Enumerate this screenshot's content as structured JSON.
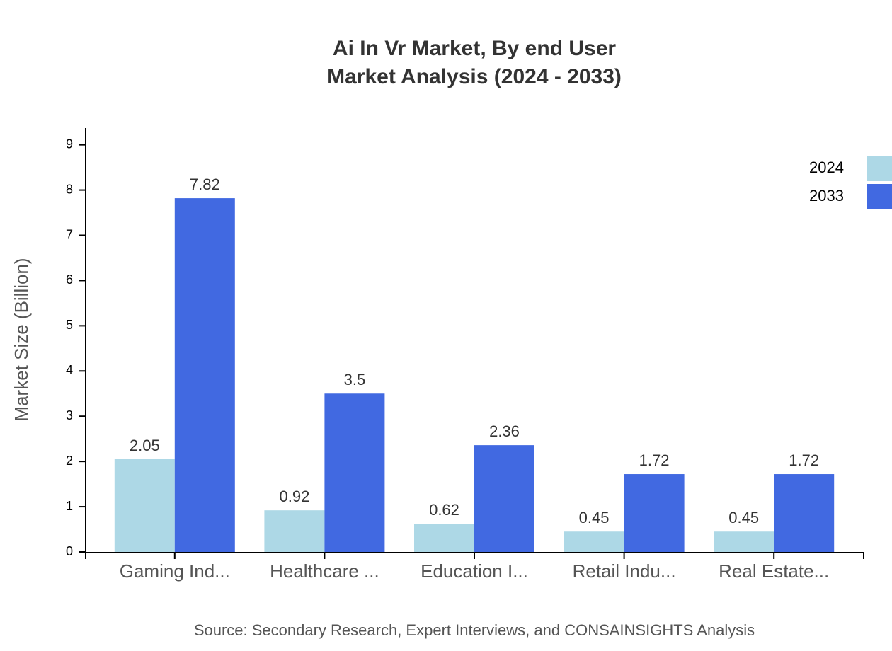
{
  "chart_data": {
    "type": "bar",
    "title": "Ai In Vr Market, By end User",
    "subtitle": "Market Analysis (2024 - 2033)",
    "y_label": "Market Size (Billion)",
    "source": "Source: Secondary Research, Expert Interviews, and CONSAINSIGHTS Analysis",
    "categories": [
      "Gaming Ind...",
      "Healthcare ...",
      "Education I...",
      "Retail Indu...",
      "Real Estate..."
    ],
    "series": [
      {
        "name": "2024",
        "color": "#add8e6",
        "values": [
          2.05,
          0.92,
          0.62,
          0.45,
          0.45
        ]
      },
      {
        "name": "2033",
        "color": "#4169e1",
        "values": [
          7.82,
          3.5,
          2.36,
          1.72,
          1.72
        ]
      }
    ],
    "ylim": [
      0,
      9.37
    ],
    "yticks": [
      0,
      1,
      2,
      3,
      4,
      5,
      6,
      7,
      8,
      9
    ],
    "legend": "top-right"
  }
}
